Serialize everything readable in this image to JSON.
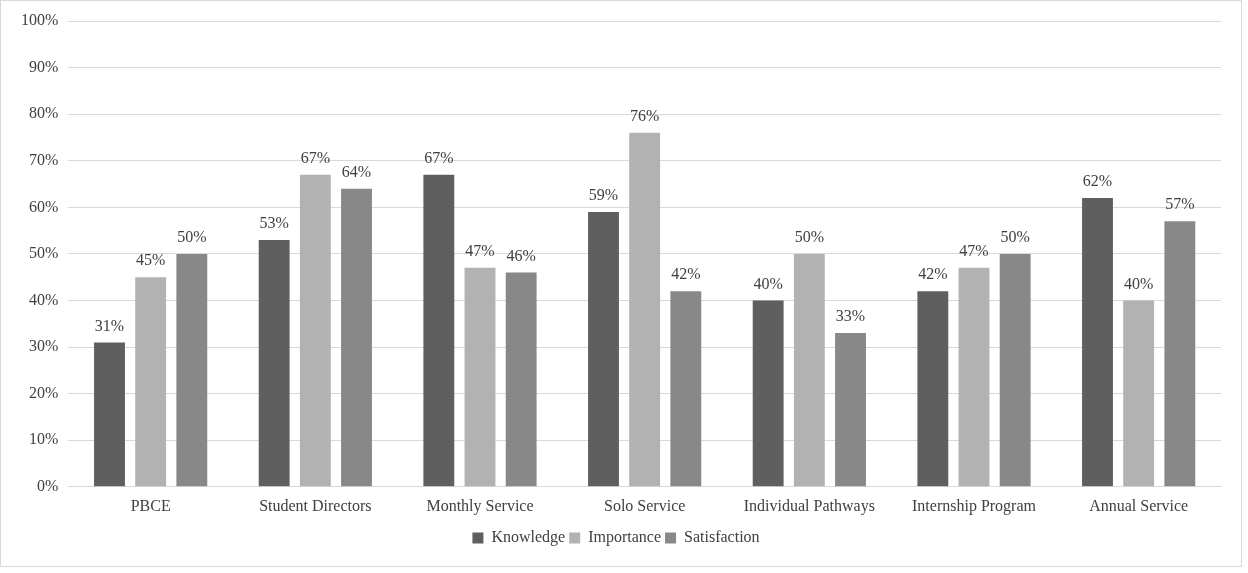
{
  "chart_data": {
    "type": "bar",
    "categories": [
      "PBCE",
      "Student Directors",
      "Monthly Service",
      "Solo Service",
      "Individual Pathways",
      "Internship Program",
      "Annual Service"
    ],
    "series": [
      {
        "name": "Knowledge",
        "color": "#5f5f5f",
        "values": [
          31,
          53,
          67,
          59,
          40,
          42,
          62
        ],
        "value_labels": [
          "31%",
          "53%",
          "67%",
          "59%",
          "40%",
          "42%",
          "62%"
        ]
      },
      {
        "name": "Importance",
        "color": "#b2b2b2",
        "values": [
          45,
          67,
          47,
          76,
          50,
          47,
          40
        ],
        "value_labels": [
          "45%",
          "67%",
          "47%",
          "76%",
          "50%",
          "47%",
          "40%"
        ]
      },
      {
        "name": "Satisfaction",
        "color": "#888888",
        "values": [
          50,
          64,
          46,
          42,
          33,
          50,
          57
        ],
        "value_labels": [
          "50%",
          "64%",
          "46%",
          "42%",
          "33%",
          "50%",
          "57%"
        ]
      }
    ],
    "ylim": [
      0,
      100
    ],
    "yticks": [
      {
        "value": 0,
        "label": "0%"
      },
      {
        "value": 10,
        "label": "10%"
      },
      {
        "value": 20,
        "label": "20%"
      },
      {
        "value": 30,
        "label": "30%"
      },
      {
        "value": 40,
        "label": "40%"
      },
      {
        "value": 50,
        "label": "50%"
      },
      {
        "value": 60,
        "label": "60%"
      },
      {
        "value": 70,
        "label": "70%"
      },
      {
        "value": 80,
        "label": "80%"
      },
      {
        "value": 90,
        "label": "90%"
      },
      {
        "value": 100,
        "label": "100%"
      }
    ],
    "grid": "y",
    "legend": "bottom"
  }
}
